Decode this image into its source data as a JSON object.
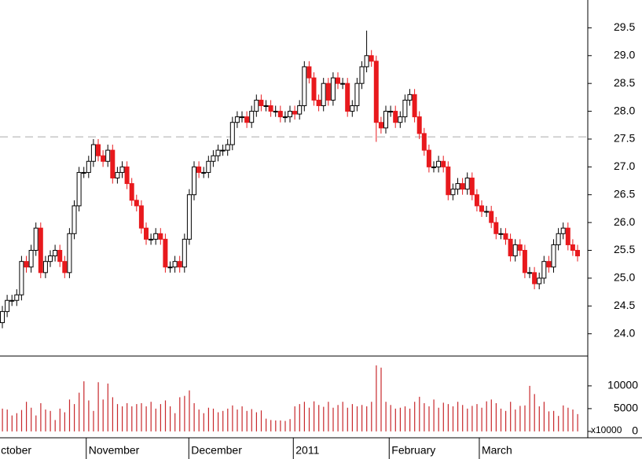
{
  "chart_data": {
    "type": "candlestick",
    "open": [
      24.2,
      24.4,
      24.6,
      24.6,
      24.7,
      25.3,
      25.2,
      25.5,
      25.9,
      25.1,
      25.3,
      25.4,
      25.5,
      25.3,
      25.1,
      25.8,
      26.3,
      26.9,
      26.9,
      27.1,
      27.4,
      27.2,
      27.1,
      27.3,
      26.8,
      26.9,
      27.0,
      26.7,
      26.4,
      26.3,
      25.9,
      25.7,
      25.7,
      25.8,
      25.7,
      25.2,
      25.2,
      25.3,
      25.2,
      25.7,
      26.5,
      27.0,
      26.9,
      26.9,
      27.1,
      27.2,
      27.3,
      27.3,
      27.4,
      27.8,
      27.9,
      27.9,
      27.8,
      28.0,
      28.2,
      28.1,
      28.1,
      28.0,
      28.0,
      27.9,
      27.9,
      28.0,
      27.95,
      28.1,
      28.8,
      28.6,
      28.2,
      28.1,
      28.5,
      28.2,
      28.6,
      28.5,
      28.5,
      28.0,
      28.1,
      28.5,
      28.8,
      29.0,
      28.9,
      27.8,
      27.7,
      28.0,
      28.0,
      27.8,
      27.9,
      28.2,
      28.3,
      27.9,
      27.6,
      27.3,
      27.0,
      27.0,
      27.1,
      27.0,
      26.5,
      26.6,
      26.7,
      26.6,
      26.8,
      26.5,
      26.3,
      26.2,
      26.2,
      26.0,
      25.8,
      25.8,
      25.7,
      25.4,
      25.6,
      25.5,
      25.1,
      25.1,
      24.9,
      25.0,
      25.3,
      25.2,
      25.6,
      25.8,
      25.9,
      25.6,
      25.5
    ],
    "high": [
      24.5,
      24.7,
      24.7,
      24.8,
      25.4,
      25.4,
      25.6,
      26.0,
      26.0,
      25.4,
      25.5,
      25.6,
      25.6,
      25.4,
      25.9,
      26.4,
      27.0,
      27.0,
      27.2,
      27.5,
      27.5,
      27.3,
      27.4,
      27.4,
      27.0,
      27.1,
      27.1,
      26.8,
      26.5,
      26.4,
      26.0,
      25.8,
      25.9,
      25.9,
      25.8,
      25.3,
      25.4,
      25.4,
      25.8,
      26.6,
      27.1,
      27.1,
      27.0,
      27.2,
      27.3,
      27.4,
      27.4,
      27.5,
      27.9,
      28.0,
      28.0,
      28.0,
      28.1,
      28.3,
      28.3,
      28.2,
      28.2,
      28.1,
      28.1,
      28.0,
      28.1,
      28.1,
      28.2,
      28.9,
      28.9,
      28.7,
      28.3,
      28.6,
      28.6,
      28.7,
      28.7,
      28.6,
      28.6,
      28.2,
      28.6,
      28.9,
      29.45,
      29.1,
      29.0,
      27.9,
      28.1,
      28.1,
      28.1,
      28.0,
      28.3,
      28.4,
      28.4,
      28.0,
      27.7,
      27.4,
      27.1,
      27.2,
      27.2,
      27.1,
      26.7,
      26.8,
      26.8,
      26.9,
      26.9,
      26.6,
      26.4,
      26.3,
      26.3,
      26.1,
      25.9,
      25.9,
      25.8,
      25.7,
      25.7,
      25.6,
      25.2,
      25.2,
      25.1,
      25.4,
      25.4,
      25.7,
      25.9,
      26.0,
      26.0,
      25.7,
      25.6
    ],
    "low": [
      24.1,
      24.3,
      24.5,
      24.5,
      24.6,
      25.1,
      25.1,
      25.4,
      25.0,
      25.0,
      25.2,
      25.3,
      25.2,
      25.0,
      25.0,
      25.7,
      26.2,
      26.8,
      26.8,
      27.0,
      27.1,
      27.0,
      27.0,
      26.7,
      26.7,
      26.8,
      26.6,
      26.3,
      26.2,
      25.8,
      25.6,
      25.6,
      25.6,
      25.6,
      25.1,
      25.1,
      25.1,
      25.1,
      25.1,
      25.6,
      26.4,
      26.8,
      26.8,
      26.8,
      27.0,
      27.1,
      27.2,
      27.2,
      27.3,
      27.7,
      27.8,
      27.7,
      27.7,
      27.9,
      28.0,
      28.0,
      27.9,
      27.9,
      27.8,
      27.8,
      27.8,
      27.85,
      27.85,
      28.0,
      28.5,
      28.1,
      28.0,
      28.0,
      28.1,
      28.1,
      28.4,
      28.4,
      27.9,
      27.9,
      28.0,
      28.4,
      28.7,
      28.8,
      27.45,
      27.6,
      27.6,
      27.9,
      27.7,
      27.7,
      27.8,
      28.1,
      27.8,
      27.5,
      27.2,
      26.9,
      26.9,
      26.9,
      26.9,
      26.4,
      26.4,
      26.5,
      26.5,
      26.5,
      26.4,
      26.2,
      26.1,
      26.1,
      25.9,
      25.7,
      25.7,
      25.6,
      25.3,
      25.3,
      25.4,
      25.0,
      25.0,
      24.8,
      24.8,
      24.9,
      25.1,
      25.1,
      25.5,
      25.7,
      25.5,
      25.4,
      25.3
    ],
    "close": [
      24.4,
      24.6,
      24.6,
      24.7,
      25.3,
      25.2,
      25.5,
      25.9,
      25.1,
      25.3,
      25.4,
      25.5,
      25.3,
      25.1,
      25.8,
      26.3,
      26.9,
      26.9,
      27.1,
      27.4,
      27.2,
      27.1,
      27.3,
      26.8,
      26.9,
      27.0,
      26.7,
      26.4,
      26.3,
      25.9,
      25.7,
      25.7,
      25.8,
      25.7,
      25.2,
      25.2,
      25.3,
      25.2,
      25.7,
      26.5,
      27.0,
      26.9,
      26.9,
      27.1,
      27.2,
      27.3,
      27.3,
      27.4,
      27.8,
      27.9,
      27.9,
      27.8,
      28.0,
      28.2,
      28.1,
      28.1,
      28.0,
      28.0,
      27.9,
      27.9,
      28.0,
      27.95,
      28.1,
      28.8,
      28.6,
      28.2,
      28.1,
      28.5,
      28.2,
      28.6,
      28.5,
      28.5,
      28.0,
      28.1,
      28.5,
      28.8,
      29.0,
      28.9,
      27.8,
      27.7,
      28.0,
      28.0,
      27.8,
      27.9,
      28.2,
      28.3,
      27.9,
      27.6,
      27.3,
      27.0,
      27.0,
      27.1,
      27.0,
      26.5,
      26.6,
      26.7,
      26.6,
      26.8,
      26.5,
      26.3,
      26.2,
      26.2,
      26.0,
      25.8,
      25.8,
      25.7,
      25.4,
      25.6,
      25.5,
      25.1,
      25.1,
      24.9,
      25.0,
      25.3,
      25.2,
      25.6,
      25.8,
      25.9,
      25.6,
      25.5,
      25.4
    ],
    "volume": [
      5000,
      4800,
      3500,
      4000,
      4700,
      6500,
      5200,
      3500,
      6200,
      4800,
      4500,
      2500,
      5000,
      4200,
      7000,
      6000,
      8500,
      11000,
      6800,
      4500,
      10800,
      7000,
      10500,
      7500,
      6000,
      5500,
      6200,
      5500,
      6000,
      6200,
      5500,
      6500,
      5000,
      6000,
      6800,
      5500,
      4000,
      7500,
      7800,
      9000,
      6200,
      4800,
      4000,
      5200,
      5000,
      4200,
      4500,
      5000,
      5700,
      4800,
      5500,
      4500,
      4900,
      4200,
      4600,
      2800,
      2500,
      2400,
      2400,
      2300,
      2700,
      5500,
      6000,
      6500,
      5200,
      6600,
      5800,
      5400,
      6500,
      5200,
      5800,
      6500,
      5200,
      6000,
      5500,
      5800,
      5500,
      6500,
      14500,
      14000,
      6500,
      5800,
      5000,
      5200,
      5500,
      5000,
      6500,
      7600,
      6200,
      5500,
      7000,
      5200,
      6300,
      6000,
      5500,
      6500,
      5800,
      5000,
      5600,
      6000,
      5200,
      6600,
      7000,
      6200,
      5000,
      4500,
      6500,
      4800,
      5600,
      5700,
      10000,
      8200,
      5500,
      6500,
      4400,
      4500,
      3400,
      5700,
      5200,
      4800,
      3800
    ],
    "xlim": [
      0,
      120
    ],
    "xticks": [
      {
        "value": -0.8,
        "label": "ctober"
      },
      {
        "value": 17.5,
        "label": "November"
      },
      {
        "value": 38.9,
        "label": "December"
      },
      {
        "value": 60.7,
        "label": "2011"
      },
      {
        "value": 80.7,
        "label": "February"
      },
      {
        "value": 99.5,
        "label": "March"
      }
    ],
    "ylim": [
      23.6,
      30
    ],
    "yticks": [
      {
        "value": 24,
        "label": "24.0"
      },
      24.5,
      {
        "value": 25,
        "label": "25.0"
      },
      25.5,
      {
        "value": 26,
        "label": "26.0"
      },
      26.5,
      {
        "value": 27,
        "label": "27.0"
      },
      27.5,
      {
        "value": 28,
        "label": "28.0"
      },
      28.5,
      {
        "value": 29,
        "label": "29.0"
      },
      29.5
    ],
    "y2lim": [
      -1400,
      16200
    ],
    "y2ticks": [
      0,
      5000,
      10000
    ],
    "y2_label": "x10000",
    "ref_line": 27.54,
    "colors": {
      "up": "#ffffff",
      "down": "#e8191d",
      "edge": "#000000",
      "volume": "#c8282c"
    }
  }
}
